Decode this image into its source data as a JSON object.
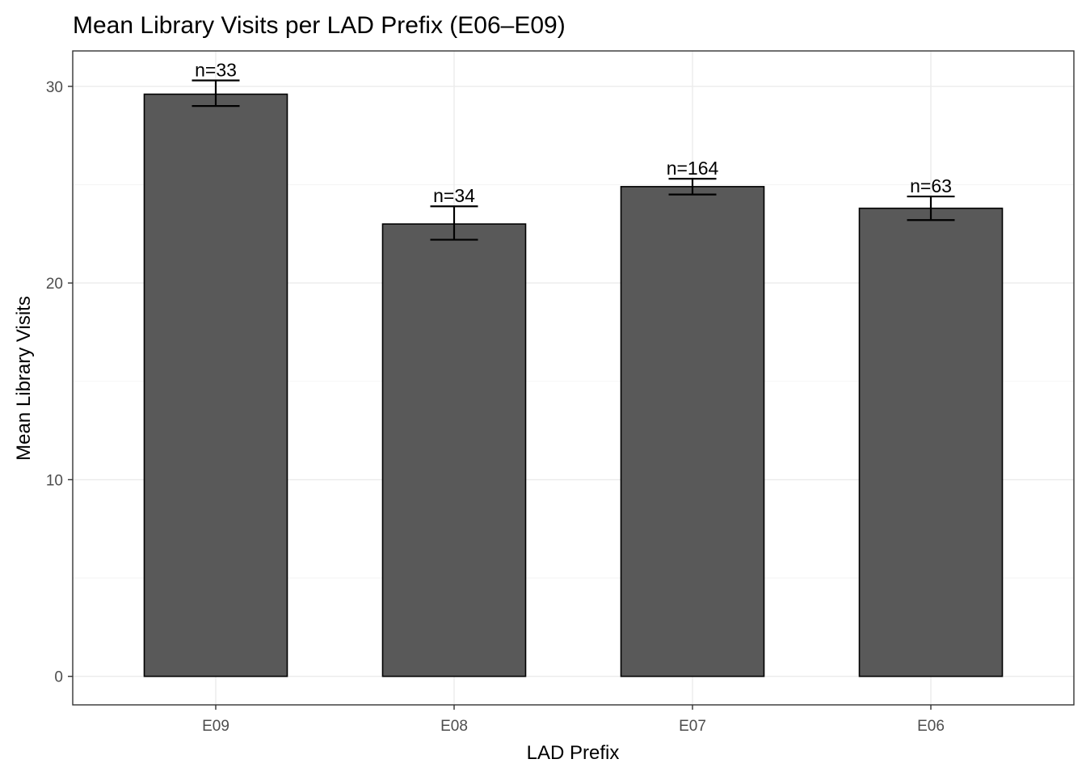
{
  "chart_data": {
    "type": "bar",
    "title": "Mean Library Visits per LAD Prefix (E06–E09)",
    "xlabel": "LAD Prefix",
    "ylabel": "Mean Library Visits",
    "categories": [
      "E09",
      "E08",
      "E07",
      "E06"
    ],
    "values": [
      29.6,
      23.0,
      24.9,
      23.8
    ],
    "error_lower": [
      29.0,
      22.2,
      24.5,
      23.2
    ],
    "error_upper": [
      30.3,
      23.9,
      25.3,
      24.4
    ],
    "data_labels": [
      "n=33",
      "n=34",
      "n=164",
      "n=63"
    ],
    "ylim": [
      -1.45,
      31.8
    ],
    "yticks": [
      0,
      10,
      20,
      30
    ],
    "ytick_labels": [
      "0",
      "10",
      "20",
      "30"
    ],
    "grid": true,
    "legend": "none",
    "colors": {
      "bar_fill": "#595959",
      "bar_outline": "#000000",
      "grid": "#ebebeb",
      "panel_border": "#333333",
      "tick_label": "#4d4d4d"
    }
  }
}
